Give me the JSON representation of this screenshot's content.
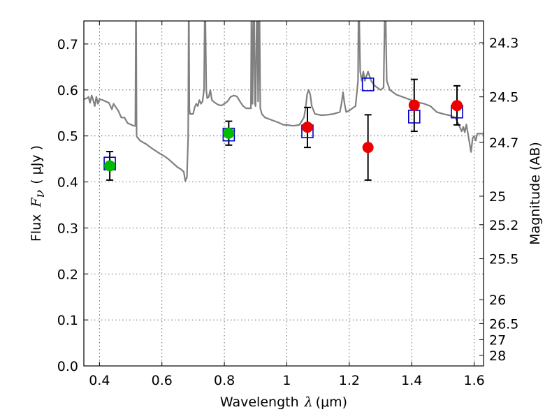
{
  "chart_data": {
    "type": "scatter",
    "xlabel_prefix": "Wavelength",
    "xlabel_symbol": "λ",
    "xlabel_unit": "(μm)",
    "ylabel_prefix": "Flux",
    "ylabel_symbol": "F",
    "ylabel_subscript": "ν",
    "ylabel_unit": "( μJy )",
    "y2label": "Magnitude (AB)",
    "xlim": [
      0.35,
      1.63
    ],
    "ylim": [
      0.0,
      0.75
    ],
    "grid": true,
    "x_ticks": [
      0.4,
      0.6,
      0.8,
      1.0,
      1.2,
      1.4,
      1.6
    ],
    "x_tick_labels": [
      "0.4",
      "0.6",
      "0.8",
      "1",
      "1.2",
      "1.4",
      "1.6"
    ],
    "y_ticks": [
      0.0,
      0.1,
      0.2,
      0.3,
      0.4,
      0.5,
      0.6,
      0.7
    ],
    "y_tick_labels": [
      "0.0",
      "0.1",
      "0.2",
      "0.3",
      "0.4",
      "0.5",
      "0.6",
      "0.7"
    ],
    "y2_ticks": [
      {
        "label": "24.3",
        "flux": 0.703
      },
      {
        "label": "24.5",
        "flux": 0.585
      },
      {
        "label": "24.7",
        "flux": 0.486
      },
      {
        "label": "25",
        "flux": 0.369
      },
      {
        "label": "25.2",
        "flux": 0.307
      },
      {
        "label": "25.5",
        "flux": 0.233
      },
      {
        "label": "26",
        "flux": 0.144
      },
      {
        "label": "26.5",
        "flux": 0.092
      },
      {
        "label": "27",
        "flux": 0.057
      },
      {
        "label": "28",
        "flux": 0.023
      }
    ],
    "series": [
      {
        "marker": "circle",
        "color": "#00bb00",
        "points": [
          {
            "x": 0.433,
            "y": 0.435
          },
          {
            "x": 0.814,
            "y": 0.506
          }
        ]
      },
      {
        "marker": "circle",
        "color": "#ee0000",
        "points": [
          {
            "x": 1.066,
            "y": 0.519
          },
          {
            "x": 1.26,
            "y": 0.475
          },
          {
            "x": 1.408,
            "y": 0.567
          },
          {
            "x": 1.545,
            "y": 0.566
          }
        ]
      },
      {
        "marker": "square",
        "color": "#0000cc",
        "points": [
          {
            "x": 0.433,
            "y": 0.44
          },
          {
            "x": 0.814,
            "y": 0.503
          },
          {
            "x": 1.066,
            "y": 0.51
          },
          {
            "x": 1.26,
            "y": 0.612
          },
          {
            "x": 1.408,
            "y": 0.542
          },
          {
            "x": 1.545,
            "y": 0.553
          }
        ]
      },
      {
        "marker": "errorbar",
        "color": "#000000",
        "bars": [
          {
            "x": 0.433,
            "low": 0.404,
            "high": 0.466
          },
          {
            "x": 0.814,
            "low": 0.48,
            "high": 0.532
          },
          {
            "x": 1.066,
            "low": 0.475,
            "high": 0.562
          },
          {
            "x": 1.26,
            "low": 0.404,
            "high": 0.546
          },
          {
            "x": 1.408,
            "low": 0.51,
            "high": 0.623
          },
          {
            "x": 1.545,
            "low": 0.524,
            "high": 0.609
          }
        ]
      },
      {
        "marker": "line",
        "color": "#808080",
        "points": [
          [
            0.35,
            0.58
          ],
          [
            0.36,
            0.582
          ],
          [
            0.365,
            0.585
          ],
          [
            0.37,
            0.572
          ],
          [
            0.375,
            0.588
          ],
          [
            0.38,
            0.578
          ],
          [
            0.385,
            0.565
          ],
          [
            0.39,
            0.585
          ],
          [
            0.395,
            0.57
          ],
          [
            0.4,
            0.58
          ],
          [
            0.41,
            0.578
          ],
          [
            0.42,
            0.575
          ],
          [
            0.43,
            0.572
          ],
          [
            0.44,
            0.558
          ],
          [
            0.445,
            0.57
          ],
          [
            0.45,
            0.565
          ],
          [
            0.46,
            0.555
          ],
          [
            0.47,
            0.54
          ],
          [
            0.48,
            0.54
          ],
          [
            0.49,
            0.528
          ],
          [
            0.5,
            0.525
          ],
          [
            0.51,
            0.522
          ],
          [
            0.515,
            0.522
          ],
          [
            0.517,
            0.82
          ],
          [
            0.519,
            0.5
          ],
          [
            0.52,
            0.498
          ],
          [
            0.53,
            0.49
          ],
          [
            0.55,
            0.482
          ],
          [
            0.57,
            0.472
          ],
          [
            0.59,
            0.463
          ],
          [
            0.61,
            0.455
          ],
          [
            0.62,
            0.45
          ],
          [
            0.64,
            0.438
          ],
          [
            0.65,
            0.432
          ],
          [
            0.66,
            0.428
          ],
          [
            0.67,
            0.422
          ],
          [
            0.675,
            0.402
          ],
          [
            0.68,
            0.41
          ],
          [
            0.684,
            0.498
          ],
          [
            0.686,
            0.82
          ],
          [
            0.688,
            0.56
          ],
          [
            0.69,
            0.548
          ],
          [
            0.7,
            0.548
          ],
          [
            0.705,
            0.562
          ],
          [
            0.71,
            0.57
          ],
          [
            0.715,
            0.565
          ],
          [
            0.72,
            0.578
          ],
          [
            0.725,
            0.57
          ],
          [
            0.73,
            0.575
          ],
          [
            0.735,
            0.6
          ],
          [
            0.738,
            0.82
          ],
          [
            0.742,
            0.6
          ],
          [
            0.745,
            0.582
          ],
          [
            0.75,
            0.585
          ],
          [
            0.755,
            0.6
          ],
          [
            0.76,
            0.578
          ],
          [
            0.77,
            0.572
          ],
          [
            0.78,
            0.568
          ],
          [
            0.79,
            0.566
          ],
          [
            0.8,
            0.57
          ],
          [
            0.81,
            0.575
          ],
          [
            0.82,
            0.585
          ],
          [
            0.83,
            0.588
          ],
          [
            0.84,
            0.586
          ],
          [
            0.85,
            0.575
          ],
          [
            0.86,
            0.565
          ],
          [
            0.87,
            0.56
          ],
          [
            0.88,
            0.56
          ],
          [
            0.885,
            0.56
          ],
          [
            0.887,
            0.82
          ],
          [
            0.89,
            0.57
          ],
          [
            0.895,
            0.82
          ],
          [
            0.898,
            0.57
          ],
          [
            0.9,
            0.565
          ],
          [
            0.905,
            0.82
          ],
          [
            0.908,
            0.575
          ],
          [
            0.912,
            0.82
          ],
          [
            0.915,
            0.56
          ],
          [
            0.92,
            0.548
          ],
          [
            0.93,
            0.54
          ],
          [
            0.95,
            0.535
          ],
          [
            0.97,
            0.53
          ],
          [
            0.99,
            0.524
          ],
          [
            1.0,
            0.524
          ],
          [
            1.02,
            0.522
          ],
          [
            1.04,
            0.524
          ],
          [
            1.055,
            0.54
          ],
          [
            1.06,
            0.56
          ],
          [
            1.065,
            0.59
          ],
          [
            1.07,
            0.6
          ],
          [
            1.075,
            0.59
          ],
          [
            1.08,
            0.565
          ],
          [
            1.09,
            0.548
          ],
          [
            1.11,
            0.545
          ],
          [
            1.13,
            0.546
          ],
          [
            1.15,
            0.548
          ],
          [
            1.16,
            0.55
          ],
          [
            1.17,
            0.552
          ],
          [
            1.175,
            0.57
          ],
          [
            1.18,
            0.595
          ],
          [
            1.185,
            0.57
          ],
          [
            1.19,
            0.552
          ],
          [
            1.2,
            0.555
          ],
          [
            1.21,
            0.56
          ],
          [
            1.22,
            0.565
          ],
          [
            1.228,
            0.62
          ],
          [
            1.23,
            0.82
          ],
          [
            1.235,
            0.64
          ],
          [
            1.24,
            0.62
          ],
          [
            1.245,
            0.64
          ],
          [
            1.25,
            0.62
          ],
          [
            1.26,
            0.64
          ],
          [
            1.27,
            0.62
          ],
          [
            1.28,
            0.61
          ],
          [
            1.29,
            0.605
          ],
          [
            1.3,
            0.6
          ],
          [
            1.31,
            0.605
          ],
          [
            1.315,
            0.82
          ],
          [
            1.32,
            0.62
          ],
          [
            1.33,
            0.6
          ],
          [
            1.35,
            0.59
          ],
          [
            1.37,
            0.585
          ],
          [
            1.39,
            0.58
          ],
          [
            1.41,
            0.575
          ],
          [
            1.42,
            0.573
          ],
          [
            1.44,
            0.57
          ],
          [
            1.46,
            0.565
          ],
          [
            1.48,
            0.552
          ],
          [
            1.5,
            0.548
          ],
          [
            1.52,
            0.545
          ],
          [
            1.54,
            0.54
          ],
          [
            1.56,
            0.51
          ],
          [
            1.565,
            0.52
          ],
          [
            1.57,
            0.508
          ],
          [
            1.575,
            0.525
          ],
          [
            1.58,
            0.505
          ],
          [
            1.585,
            0.485
          ],
          [
            1.59,
            0.465
          ],
          [
            1.595,
            0.495
          ],
          [
            1.6,
            0.5
          ],
          [
            1.605,
            0.49
          ],
          [
            1.61,
            0.505
          ],
          [
            1.62,
            0.505
          ],
          [
            1.63,
            0.505
          ]
        ]
      }
    ]
  }
}
